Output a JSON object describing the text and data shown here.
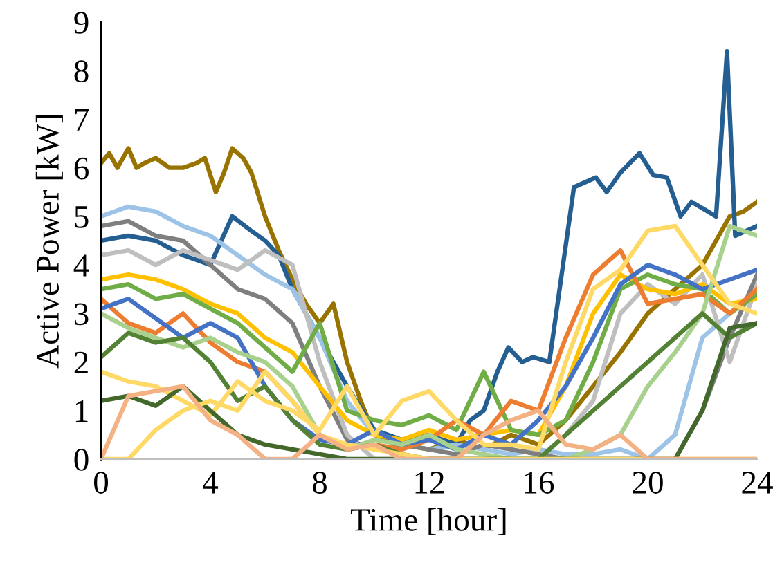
{
  "chart_data": {
    "type": "line",
    "xlabel": "Time [hour]",
    "ylabel": "Active Power [kW]",
    "x": [
      0,
      1,
      2,
      3,
      4,
      5,
      6,
      7,
      8,
      9,
      10,
      11,
      12,
      13,
      14,
      15,
      16,
      17,
      18,
      19,
      20,
      21,
      22,
      23,
      24
    ],
    "xlim": [
      0,
      24
    ],
    "xticks": [
      0,
      4,
      8,
      12,
      16,
      20,
      24
    ],
    "ylim": [
      0,
      9
    ],
    "yticks": [
      0,
      1,
      2,
      3,
      4,
      5,
      6,
      7,
      8,
      9
    ],
    "grid": false,
    "legend": false,
    "marker": "none",
    "line_style": "solid",
    "series": [
      {
        "color": "#997300",
        "x": [
          0,
          0.3,
          0.6,
          1,
          1.3,
          1.6,
          2,
          2.5,
          3,
          3.5,
          3.8,
          4.2,
          4.5,
          4.8,
          5.2,
          5.5,
          6,
          6.5,
          7,
          7.5,
          8,
          8.5,
          9,
          9.5,
          10,
          11,
          12,
          13,
          14,
          15,
          16,
          17,
          18,
          19,
          20,
          21,
          22,
          22.5,
          23,
          23.5,
          24
        ],
        "values": [
          6.1,
          6.3,
          6.0,
          6.4,
          6.0,
          6.1,
          6.2,
          6.0,
          6.0,
          6.1,
          6.2,
          5.5,
          5.9,
          6.4,
          6.2,
          5.9,
          5.0,
          4.3,
          3.7,
          3.2,
          2.8,
          3.2,
          2.0,
          1.2,
          0.5,
          0.3,
          0.2,
          0.4,
          0.2,
          0.5,
          0.3,
          0.8,
          1.5,
          2.2,
          3.0,
          3.5,
          4.0,
          4.5,
          5.0,
          5.1,
          5.3
        ]
      },
      {
        "color": "#255e91",
        "x": [
          0,
          1,
          2,
          3,
          4,
          4.8,
          5.5,
          6,
          6.5,
          7,
          7.5,
          8,
          8.5,
          9,
          10,
          11,
          12,
          13,
          13.5,
          14,
          14.5,
          14.9,
          15.4,
          15.8,
          16.4,
          16.9,
          17.3,
          18.1,
          18.5,
          19,
          19.7,
          20.2,
          20.7,
          21.2,
          21.6,
          22.5,
          22.9,
          23.2,
          24
        ],
        "values": [
          4.5,
          4.6,
          4.5,
          4.2,
          4.0,
          5.0,
          4.7,
          4.5,
          4.2,
          3.5,
          3.0,
          2.5,
          2.0,
          1.5,
          0.6,
          0.4,
          0.5,
          0.3,
          0.8,
          1.0,
          1.8,
          2.3,
          2.0,
          2.1,
          2.0,
          4.0,
          5.6,
          5.8,
          5.5,
          5.9,
          6.3,
          5.85,
          5.8,
          5.0,
          5.3,
          5.0,
          8.4,
          4.6,
          4.8
        ]
      },
      {
        "color": "#9dc3e6",
        "values": [
          5.0,
          5.2,
          5.1,
          4.8,
          4.6,
          4.2,
          3.8,
          3.5,
          2.5,
          1.2,
          0.5,
          null,
          0.2,
          0.3,
          0.2,
          0.1,
          0.2,
          0.1,
          0.1,
          0.2,
          0.0,
          0.5,
          2.5,
          3.0,
          3.5
        ]
      },
      {
        "color": "#7f7f7f",
        "values": [
          4.8,
          4.9,
          4.6,
          4.5,
          4.0,
          3.5,
          3.3,
          2.8,
          1.5,
          0.4,
          0.2,
          0.3,
          0.2,
          0.1,
          0.3,
          0.2,
          0.1,
          0.0,
          0.0,
          0.0,
          0.0,
          0.0,
          1.0,
          2.5,
          3.8
        ]
      },
      {
        "color": "#bfbfbf",
        "values": [
          4.2,
          4.3,
          4.0,
          4.3,
          4.1,
          3.9,
          4.3,
          4.0,
          2.0,
          0.5,
          0.0,
          0.0,
          0.0,
          0.0,
          0.0,
          0.0,
          0.0,
          0.5,
          1.2,
          3.0,
          3.6,
          3.2,
          3.8,
          2.0,
          3.6
        ]
      },
      {
        "color": "#ffc000",
        "values": [
          3.7,
          3.8,
          3.7,
          3.5,
          3.2,
          3.0,
          2.5,
          2.2,
          1.5,
          0.8,
          0.5,
          0.4,
          0.6,
          0.4,
          0.5,
          0.6,
          0.5,
          1.5,
          3.0,
          3.8,
          3.5,
          3.4,
          3.6,
          3.2,
          3.3
        ]
      },
      {
        "color": "#70ad47",
        "values": [
          3.5,
          3.6,
          3.3,
          3.4,
          3.1,
          2.8,
          2.3,
          1.8,
          2.8,
          1.0,
          0.8,
          0.7,
          0.9,
          0.6,
          1.8,
          0.6,
          0.5,
          0.8,
          2.0,
          3.5,
          3.8,
          3.6,
          3.5,
          3.0,
          3.4
        ]
      },
      {
        "color": "#ed7d31",
        "values": [
          3.3,
          2.8,
          2.6,
          3.0,
          2.4,
          2.0,
          1.8,
          1.2,
          0.5,
          0.2,
          0.3,
          0.2,
          0.4,
          0.8,
          0.5,
          1.2,
          1.0,
          2.5,
          3.8,
          4.3,
          3.2,
          3.3,
          3.4,
          3.0,
          3.5
        ]
      },
      {
        "color": "#4472c4",
        "values": [
          3.1,
          3.3,
          2.9,
          2.5,
          2.8,
          2.5,
          1.5,
          0.8,
          0.4,
          0.3,
          0.6,
          0.3,
          0.4,
          0.2,
          0.5,
          0.3,
          0.8,
          1.5,
          2.5,
          3.6,
          4.0,
          3.8,
          3.5,
          3.7,
          3.9
        ]
      },
      {
        "color": "#a9d18e",
        "values": [
          3.0,
          2.7,
          2.5,
          2.3,
          2.5,
          2.2,
          2.0,
          1.5,
          0.5,
          0.2,
          0.4,
          0.3,
          0.5,
          0.2,
          0.1,
          0.0,
          0.0,
          0.0,
          0.2,
          0.5,
          1.5,
          2.2,
          3.0,
          4.8,
          4.6
        ]
      },
      {
        "color": "#548235",
        "values": [
          2.1,
          2.6,
          2.4,
          2.5,
          2.0,
          1.2,
          1.5,
          0.8,
          0.3,
          0.2,
          0.3,
          0.1,
          0.0,
          0.0,
          0.0,
          0.0,
          0.0,
          0.5,
          1.0,
          1.5,
          2.0,
          2.5,
          3.0,
          2.5,
          2.8
        ]
      },
      {
        "color": "#ffd966",
        "values": [
          1.8,
          1.6,
          1.5,
          1.2,
          0.9,
          1.6,
          1.2,
          1.0,
          0.6,
          1.5,
          0.5,
          1.2,
          1.4,
          0.8,
          0.3,
          0.3,
          0.2,
          2.0,
          3.5,
          3.9,
          4.7,
          4.8,
          4.0,
          3.2,
          3.0
        ]
      },
      {
        "color": "#43682b",
        "values": [
          1.2,
          1.3,
          1.1,
          1.5,
          1.0,
          0.5,
          0.3,
          0.2,
          0.1,
          0.0,
          0.0,
          0.0,
          0.0,
          0.0,
          0.0,
          0.0,
          0.0,
          0.0,
          0.0,
          0.0,
          0.0,
          0.0,
          1.0,
          2.7,
          2.8
        ]
      },
      {
        "color": "#ffd966",
        "values": [
          0.0,
          0.0,
          0.6,
          1.0,
          1.2,
          1.0,
          1.8,
          1.2,
          0.5,
          0.3,
          0.2,
          0.1,
          0.0,
          0.0,
          0.0,
          0.0,
          0.0,
          0.0,
          0.0,
          0.0,
          0.0,
          0.0,
          0.0,
          0.0,
          0.0
        ]
      },
      {
        "color": "#f4b183",
        "values": [
          0.0,
          1.3,
          1.4,
          1.5,
          0.8,
          0.5,
          0.0,
          0.0,
          0.5,
          0.2,
          0.3,
          0.0,
          0.0,
          0.0,
          0.5,
          0.8,
          1.0,
          0.3,
          0.2,
          0.5,
          0.0,
          0.0,
          0.0,
          0.0,
          0.0
        ]
      }
    ]
  }
}
